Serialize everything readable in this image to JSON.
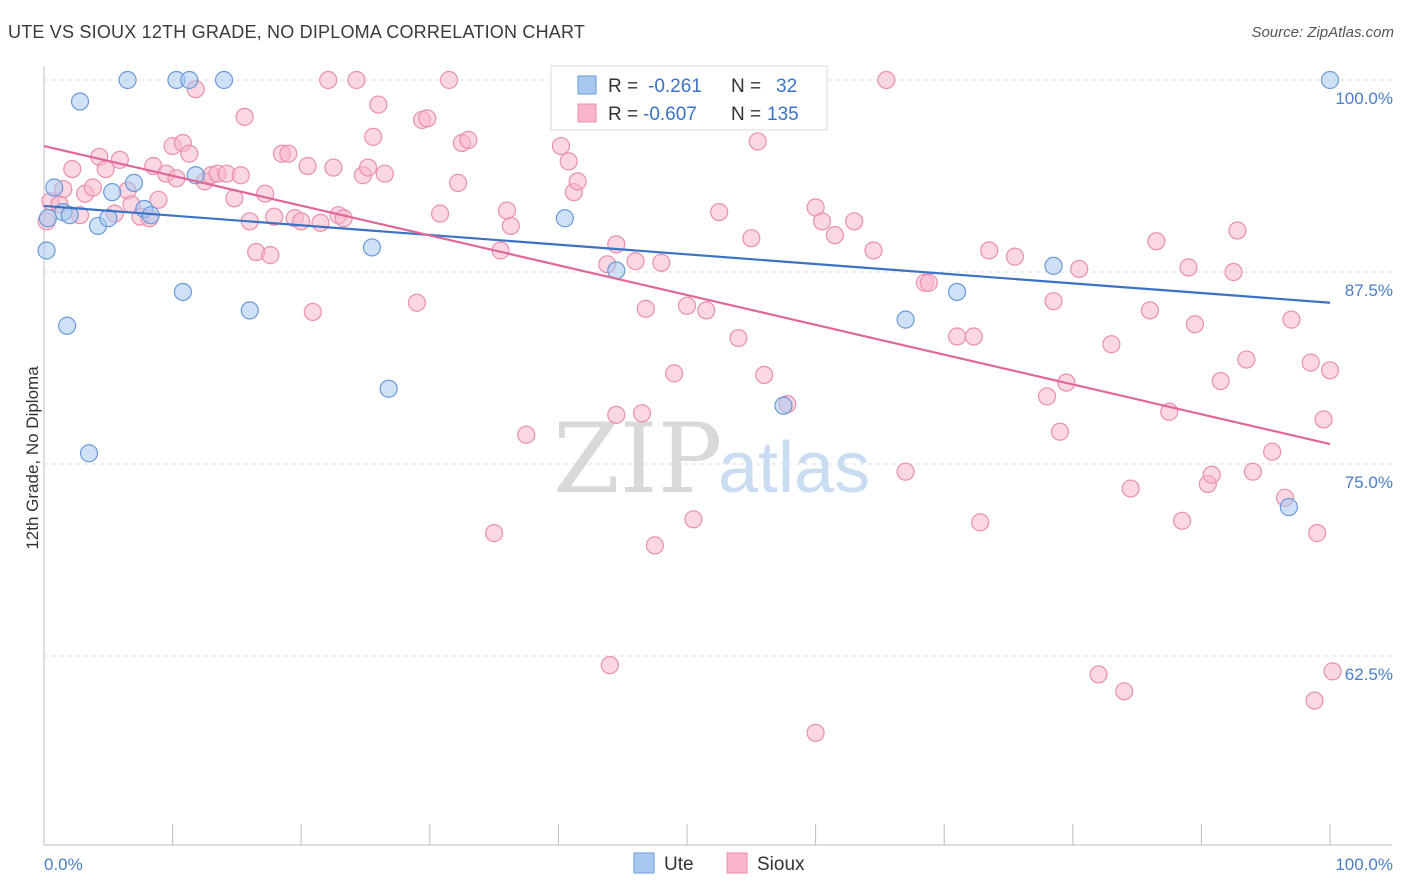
{
  "title": "UTE VS SIOUX 12TH GRADE, NO DIPLOMA CORRELATION CHART",
  "source": "Source: ZipAtlas.com",
  "watermark": {
    "zip": "ZIP",
    "atlas": "atlas"
  },
  "legend": {
    "rows": [
      {
        "r_label": "R =",
        "r_value": "-0.261",
        "n_label": "N =",
        "n_value": "32",
        "color": "#a8c8f0"
      },
      {
        "r_label": "R =",
        "r_value": "-0.607",
        "n_label": "N =",
        "n_value": "135",
        "color": "#f7b6cb"
      }
    ]
  },
  "bottom_legend": [
    {
      "label": "Ute",
      "color": "#a8c8f0"
    },
    {
      "label": "Sioux",
      "color": "#f7b6cb"
    }
  ],
  "chart_data": {
    "type": "scatter",
    "xlabel": "",
    "ylabel": "12th Grade, No Diploma",
    "xlim": [
      0,
      100
    ],
    "ylim": [
      50.0,
      101.5
    ],
    "x_tick_labels": [
      "0.0%",
      "100.0%"
    ],
    "y_ticks": [
      100.0,
      87.5,
      75.0,
      62.5
    ],
    "y_tick_labels": [
      "100.0%",
      "87.5%",
      "75.0%",
      "62.5%"
    ],
    "grid": true,
    "series": [
      {
        "name": "Ute",
        "color": "#a8c8f0",
        "stroke": "#6a9ad8",
        "trend": {
          "x": [
            0,
            100
          ],
          "y": [
            91.8,
            85.5
          ],
          "color": "#3b72c4"
        },
        "points": [
          [
            0.2,
            88.9
          ],
          [
            0.8,
            93.0
          ],
          [
            1.5,
            91.4
          ],
          [
            1.8,
            84.0
          ],
          [
            2.8,
            98.6
          ],
          [
            3.5,
            75.7
          ],
          [
            4.2,
            90.5
          ],
          [
            5.0,
            91.0
          ],
          [
            5.3,
            92.7
          ],
          [
            6.5,
            100.0
          ],
          [
            7.0,
            93.3
          ],
          [
            7.8,
            91.6
          ],
          [
            8.3,
            91.2
          ],
          [
            10.3,
            100.0
          ],
          [
            10.8,
            86.2
          ],
          [
            11.3,
            100.0
          ],
          [
            11.8,
            93.8
          ],
          [
            14.0,
            100.0
          ],
          [
            16.0,
            85.0
          ],
          [
            25.5,
            89.1
          ],
          [
            26.8,
            79.9
          ],
          [
            40.5,
            91.0
          ],
          [
            44.5,
            87.6
          ],
          [
            57.0,
            100.0
          ],
          [
            57.5,
            78.8
          ],
          [
            67.0,
            84.4
          ],
          [
            71.0,
            86.2
          ],
          [
            78.5,
            87.9
          ],
          [
            96.8,
            72.2
          ],
          [
            100.0,
            100.0
          ],
          [
            0.3,
            91.0
          ],
          [
            2.0,
            91.2
          ]
        ]
      },
      {
        "name": "Sioux",
        "color": "#f7b6cb",
        "stroke": "#ea8fad",
        "trend": {
          "x": [
            0,
            100
          ],
          "y": [
            95.7,
            76.3
          ],
          "color": "#e0679a"
        },
        "points": [
          [
            0.2,
            90.8
          ],
          [
            0.5,
            92.1
          ],
          [
            1.2,
            91.9
          ],
          [
            1.5,
            92.9
          ],
          [
            2.2,
            94.2
          ],
          [
            2.8,
            91.2
          ],
          [
            3.2,
            92.6
          ],
          [
            3.8,
            93.0
          ],
          [
            4.3,
            95.0
          ],
          [
            4.8,
            94.2
          ],
          [
            5.5,
            91.3
          ],
          [
            5.9,
            94.8
          ],
          [
            6.5,
            92.8
          ],
          [
            6.8,
            91.9
          ],
          [
            7.5,
            91.1
          ],
          [
            8.2,
            91.0
          ],
          [
            8.5,
            94.4
          ],
          [
            8.9,
            92.2
          ],
          [
            9.5,
            93.9
          ],
          [
            10.0,
            95.7
          ],
          [
            10.3,
            93.6
          ],
          [
            10.8,
            95.9
          ],
          [
            11.3,
            95.2
          ],
          [
            11.8,
            99.4
          ],
          [
            12.5,
            93.4
          ],
          [
            13.0,
            93.8
          ],
          [
            13.5,
            93.9
          ],
          [
            14.2,
            93.9
          ],
          [
            14.8,
            92.3
          ],
          [
            15.3,
            93.8
          ],
          [
            15.6,
            97.6
          ],
          [
            16.0,
            90.8
          ],
          [
            16.5,
            88.8
          ],
          [
            17.2,
            92.6
          ],
          [
            17.6,
            88.6
          ],
          [
            17.9,
            91.1
          ],
          [
            18.5,
            95.2
          ],
          [
            19.0,
            95.2
          ],
          [
            19.5,
            91.0
          ],
          [
            20.0,
            90.8
          ],
          [
            20.5,
            94.4
          ],
          [
            20.9,
            84.9
          ],
          [
            21.5,
            90.7
          ],
          [
            22.1,
            100.0
          ],
          [
            22.5,
            94.3
          ],
          [
            22.9,
            91.2
          ],
          [
            23.3,
            91.0
          ],
          [
            24.3,
            100.0
          ],
          [
            24.8,
            93.8
          ],
          [
            25.2,
            94.3
          ],
          [
            25.6,
            96.3
          ],
          [
            26.0,
            98.4
          ],
          [
            26.5,
            93.9
          ],
          [
            29.0,
            85.5
          ],
          [
            29.4,
            97.4
          ],
          [
            29.8,
            97.5
          ],
          [
            30.8,
            91.3
          ],
          [
            31.5,
            100.0
          ],
          [
            32.2,
            93.3
          ],
          [
            32.5,
            95.9
          ],
          [
            33.0,
            96.1
          ],
          [
            35.0,
            70.5
          ],
          [
            35.5,
            88.9
          ],
          [
            36.0,
            91.5
          ],
          [
            36.3,
            90.5
          ],
          [
            37.5,
            76.9
          ],
          [
            40.2,
            95.7
          ],
          [
            40.8,
            94.7
          ],
          [
            41.2,
            92.7
          ],
          [
            41.5,
            93.4
          ],
          [
            43.8,
            88.0
          ],
          [
            44.5,
            89.3
          ],
          [
            46.5,
            78.3
          ],
          [
            46.8,
            85.1
          ],
          [
            47.5,
            69.7
          ],
          [
            48.0,
            88.1
          ],
          [
            49.0,
            80.9
          ],
          [
            50.0,
            85.3
          ],
          [
            50.5,
            71.4
          ],
          [
            51.5,
            85.0
          ],
          [
            52.5,
            91.4
          ],
          [
            54.0,
            83.2
          ],
          [
            55.0,
            89.7
          ],
          [
            55.5,
            96.0
          ],
          [
            56.0,
            80.8
          ],
          [
            57.8,
            78.9
          ],
          [
            60.0,
            91.7
          ],
          [
            60.5,
            90.8
          ],
          [
            61.5,
            89.9
          ],
          [
            63.0,
            90.8
          ],
          [
            64.5,
            88.9
          ],
          [
            65.5,
            100.0
          ],
          [
            67.0,
            74.5
          ],
          [
            68.5,
            86.8
          ],
          [
            68.8,
            86.8
          ],
          [
            71.0,
            83.3
          ],
          [
            72.3,
            83.3
          ],
          [
            72.8,
            71.2
          ],
          [
            73.5,
            88.9
          ],
          [
            75.5,
            88.5
          ],
          [
            78.0,
            79.4
          ],
          [
            78.5,
            85.6
          ],
          [
            79.0,
            77.1
          ],
          [
            79.5,
            80.3
          ],
          [
            80.5,
            87.7
          ],
          [
            83.0,
            82.8
          ],
          [
            84.5,
            73.4
          ],
          [
            86.0,
            85.0
          ],
          [
            86.5,
            89.5
          ],
          [
            87.5,
            78.4
          ],
          [
            88.5,
            71.3
          ],
          [
            89.0,
            87.8
          ],
          [
            89.5,
            84.1
          ],
          [
            90.5,
            73.7
          ],
          [
            90.8,
            74.3
          ],
          [
            91.5,
            80.4
          ],
          [
            92.5,
            87.5
          ],
          [
            92.8,
            90.2
          ],
          [
            93.5,
            81.8
          ],
          [
            94.0,
            74.5
          ],
          [
            95.5,
            75.8
          ],
          [
            96.5,
            72.8
          ],
          [
            97.0,
            84.4
          ],
          [
            98.5,
            81.6
          ],
          [
            99.0,
            70.5
          ],
          [
            99.5,
            77.9
          ],
          [
            100.0,
            81.1
          ],
          [
            100.2,
            61.5
          ],
          [
            98.8,
            59.6
          ],
          [
            82.0,
            61.3
          ],
          [
            84.0,
            60.2
          ],
          [
            60.0,
            57.5
          ],
          [
            44.0,
            61.9
          ],
          [
            44.5,
            78.2
          ],
          [
            46.0,
            88.2
          ]
        ]
      }
    ]
  }
}
